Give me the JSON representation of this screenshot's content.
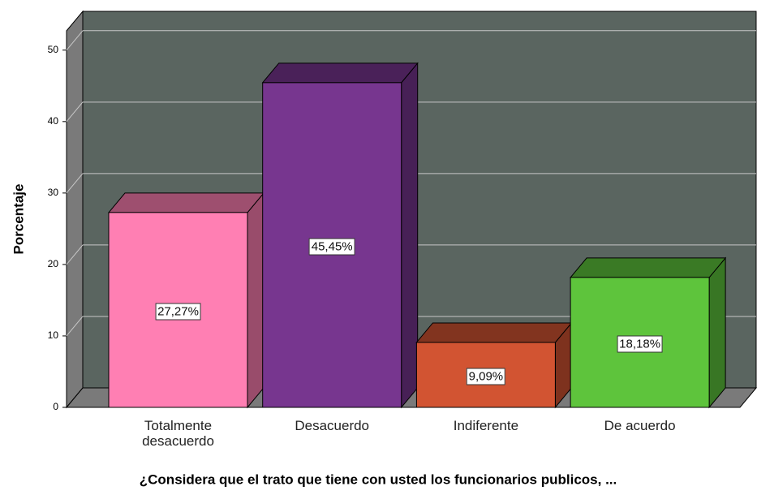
{
  "chart_data": {
    "type": "bar3d",
    "x_label": "¿Considera que el trato que tiene con usted los funcionarios publicos, ...",
    "y_label": "Porcentaje",
    "categories": [
      "Totalmente desacuerdo",
      "Desacuerdo",
      "Indiferente",
      "De acuerdo"
    ],
    "values": [
      27.27,
      45.45,
      9.09,
      18.18
    ],
    "value_labels": [
      "27,27%",
      "45,45%",
      "9,09%",
      "18,18%"
    ],
    "colors": [
      "#ff7fb3",
      "#77368f",
      "#d25432",
      "#5ec43c"
    ],
    "ylim": [
      0,
      52.7
    ],
    "yticks": [
      0,
      10,
      20,
      30,
      40,
      50
    ],
    "grid": true
  }
}
